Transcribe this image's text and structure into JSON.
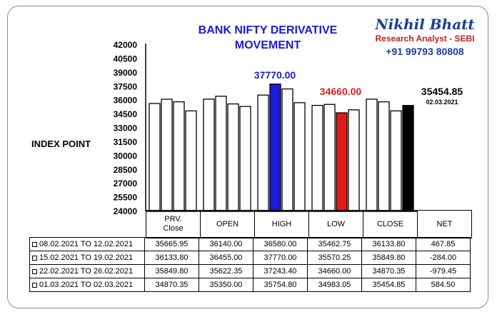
{
  "header": {
    "title_line1": "BANK NIFTY DERIVATIVE",
    "title_line2": "MOVEMENT",
    "brand_name": "Nikhil Bhatt",
    "brand_role": "Research Analyst - SEBI",
    "brand_phone": "+91 99793 80808"
  },
  "chart_data": {
    "type": "bar",
    "ylabel": "INDEX POINT",
    "ylim": [
      24000,
      42000
    ],
    "yticks": [
      24000,
      25500,
      27000,
      28500,
      30000,
      31500,
      33000,
      34500,
      36000,
      37500,
      39000,
      40500,
      42000
    ],
    "yticks_text": [
      "24000",
      "25500",
      "27000",
      "28500",
      "30000",
      "31500",
      "33000",
      "34500",
      "36000",
      "37500",
      "39000",
      "40500",
      "42000"
    ],
    "grid": false,
    "categories": [
      "PRV. Close",
      "OPEN",
      "HIGH",
      "LOW",
      "CLOSE"
    ],
    "category_lines": [
      [
        "PRV.",
        "Close"
      ],
      [
        "OPEN"
      ],
      [
        "HIGH"
      ],
      [
        "LOW"
      ],
      [
        "CLOSE"
      ]
    ],
    "series": [
      {
        "name": "08.02.2021 TO 12.02.2021",
        "values": [
          35665.95,
          36140.0,
          36580.0,
          35462.75,
          36133.8
        ]
      },
      {
        "name": "15.02.2021 TO 19.02.2021",
        "values": [
          36133.8,
          36455.0,
          37770.0,
          35570.25,
          35849.8
        ]
      },
      {
        "name": "22.02.2021 TO 26.02.2021",
        "values": [
          35849.8,
          35622.35,
          37243.4,
          34660.0,
          34870.35
        ]
      },
      {
        "name": "01.03.2021 TO 02.03.2021",
        "values": [
          34870.35,
          35350.0,
          35754.8,
          34983.05,
          35454.85
        ]
      }
    ],
    "highlights": [
      {
        "category": "HIGH",
        "series_index": 1,
        "value": 37770.0,
        "label": "37770.00",
        "color": "#1a1adb"
      },
      {
        "category": "LOW",
        "series_index": 2,
        "value": 34660.0,
        "label": "34660.00",
        "color": "#e11b1b"
      },
      {
        "category": "CLOSE",
        "series_index": 3,
        "value": 35454.85,
        "label": "35454.85",
        "sublabel": "02.03.2021",
        "color": "#000000"
      }
    ],
    "bar_default_color": "#ffffff"
  },
  "table": {
    "net_header": "NET",
    "net_values": [
      "467.85",
      "-284.00",
      "-979.45",
      "584.50"
    ],
    "values_text": [
      [
        "35665.95",
        "36140.00",
        "36580.00",
        "35462.75",
        "36133.80"
      ],
      [
        "36133.80",
        "36455.00",
        "37770.00",
        "35570.25",
        "35849.80"
      ],
      [
        "35849.80",
        "35622.35",
        "37243.40",
        "34660.00",
        "34870.35"
      ],
      [
        "34870.35",
        "35350.00",
        "35754.80",
        "34983.05",
        "35454.85"
      ]
    ]
  }
}
